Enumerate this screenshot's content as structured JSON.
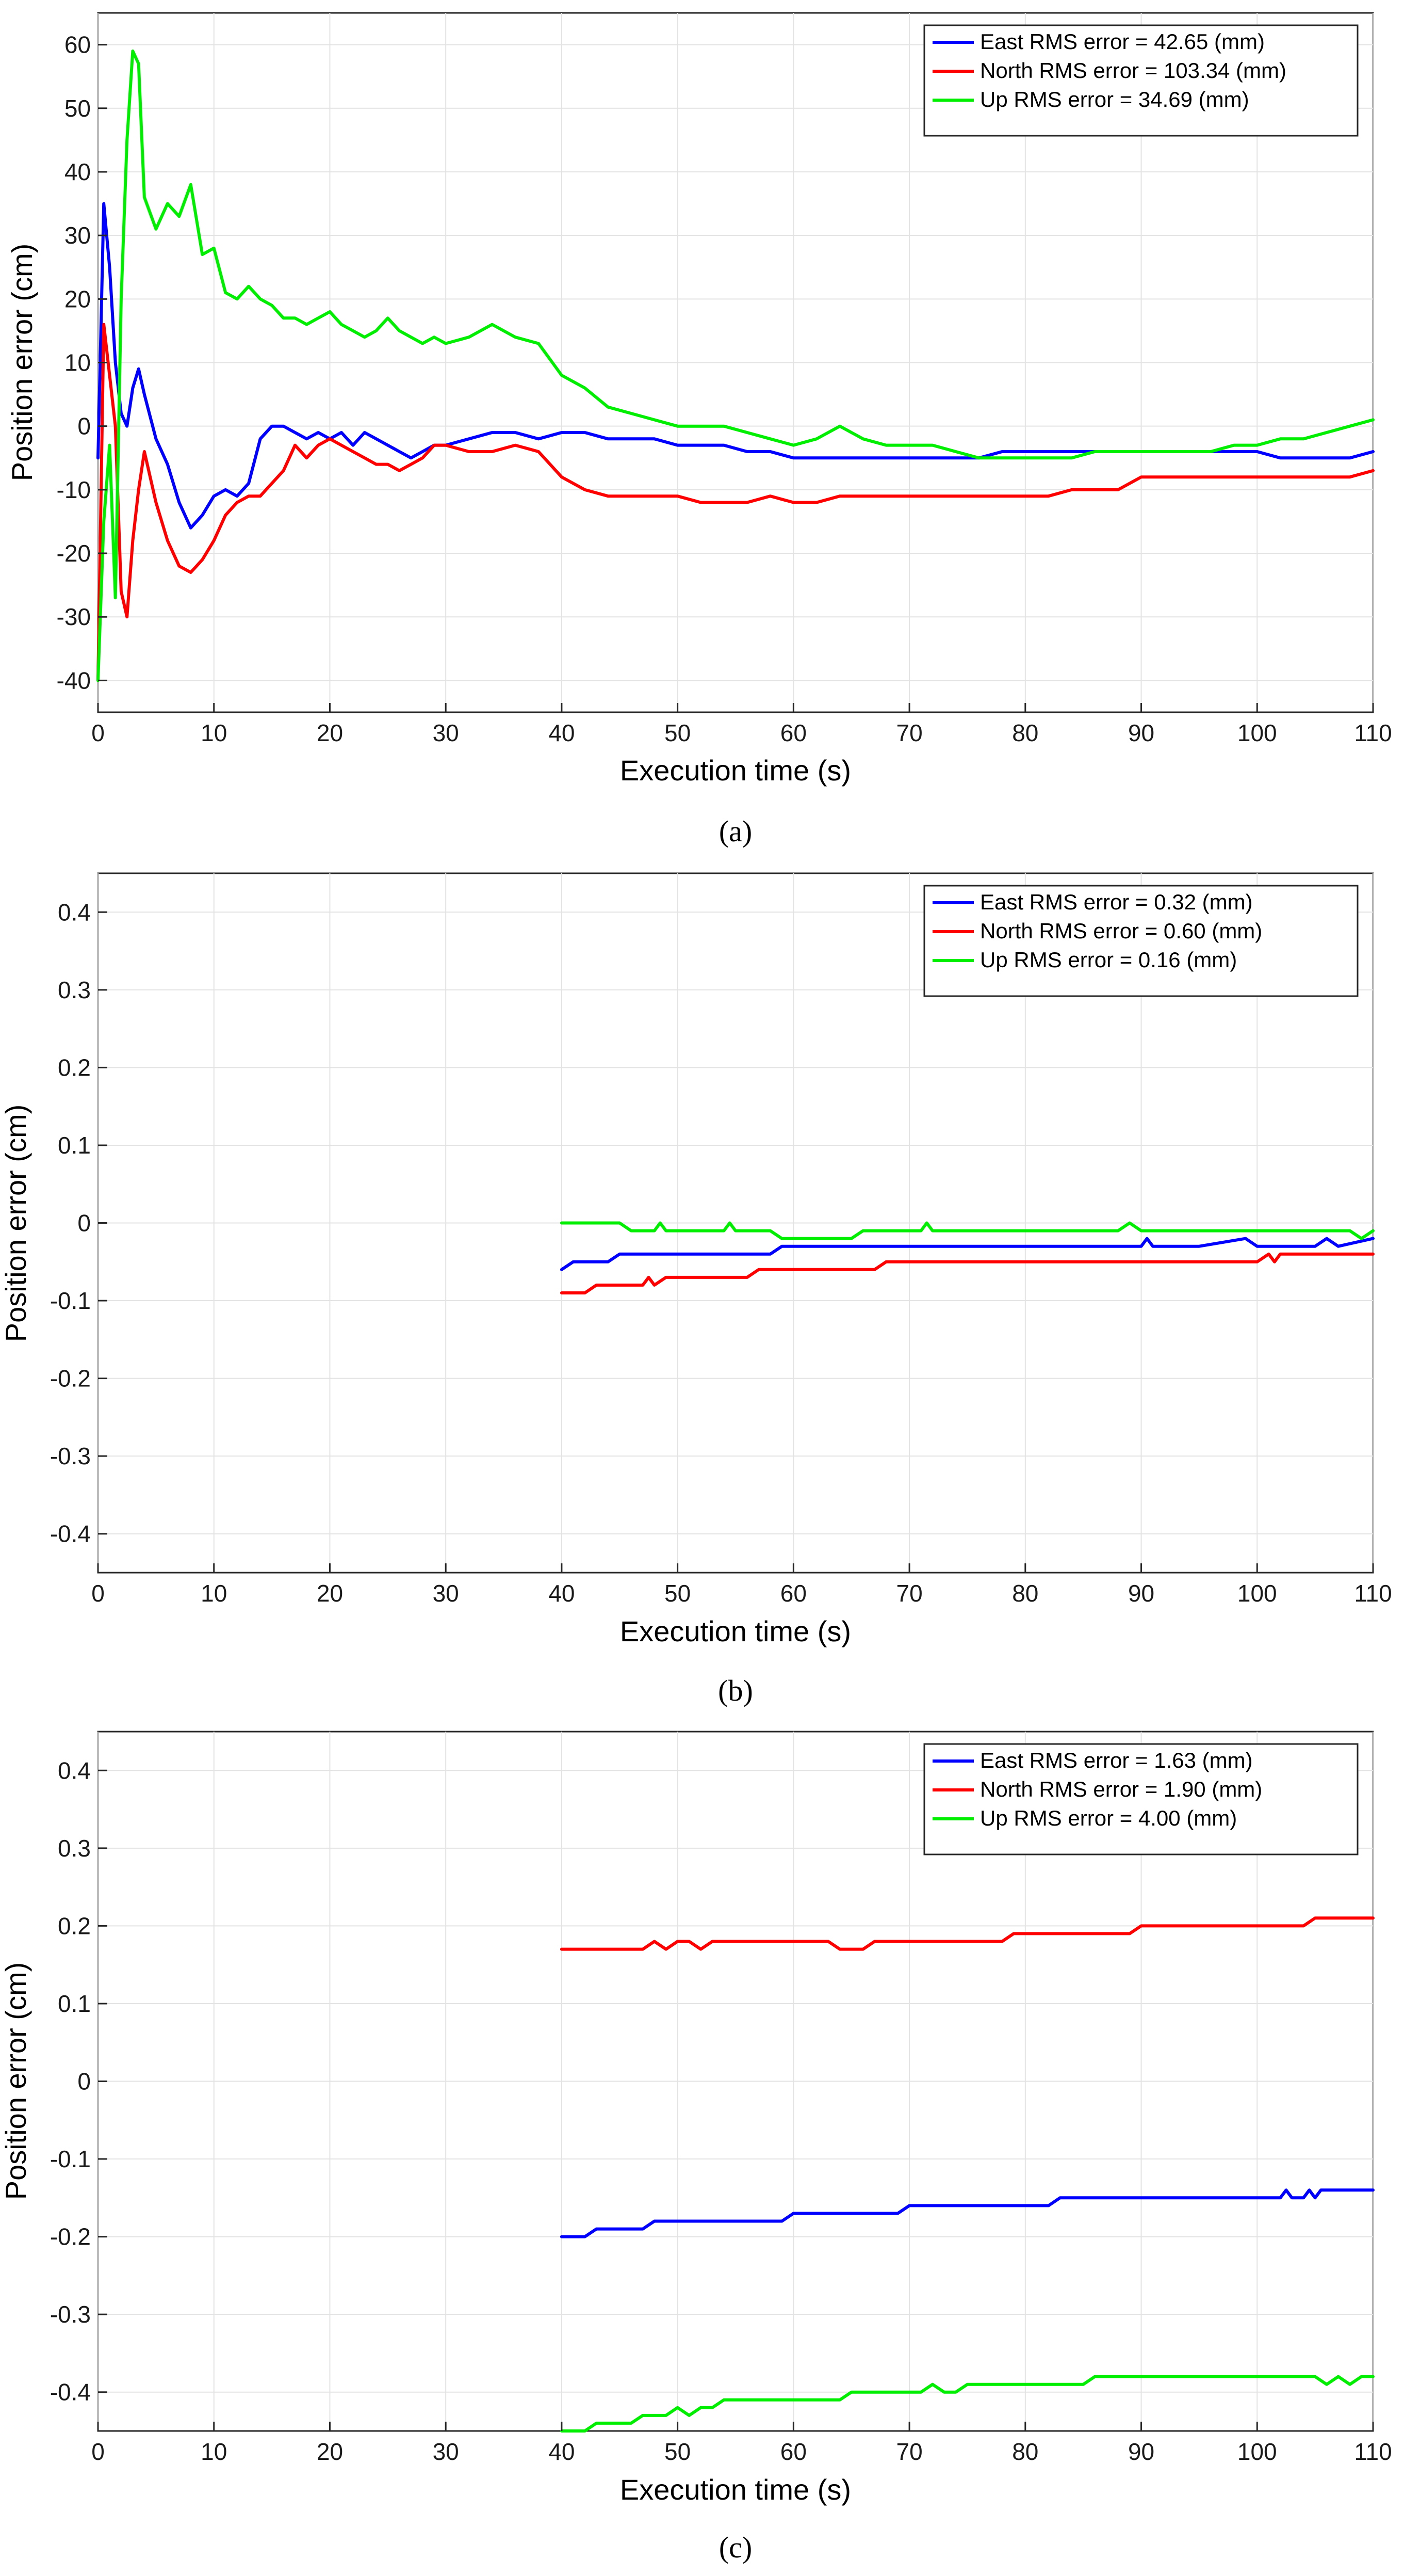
{
  "chart_data": [
    {
      "id": "a",
      "type": "line",
      "caption": "(a)",
      "xlabel": "Execution time (s)",
      "ylabel": "Position error (cm)",
      "xlim": [
        0,
        110
      ],
      "ylim": [
        -45,
        65
      ],
      "xticks": [
        0,
        10,
        20,
        30,
        40,
        50,
        60,
        70,
        80,
        90,
        100,
        110
      ],
      "yticks": [
        -40,
        -30,
        -20,
        -10,
        0,
        10,
        20,
        30,
        40,
        50,
        60
      ],
      "grid": true,
      "legend_position": "top-right",
      "series": [
        {
          "name": "East RMS error = 42.65 (mm)",
          "color": "#0000ff",
          "x": [
            0,
            0.5,
            1,
            1.5,
            2,
            2.5,
            3,
            3.5,
            4,
            5,
            6,
            7,
            8,
            9,
            10,
            11,
            12,
            13,
            14,
            15,
            16,
            17,
            18,
            19,
            20,
            21,
            22,
            23,
            24,
            25,
            26,
            27,
            28,
            29,
            30,
            32,
            34,
            36,
            38,
            40,
            42,
            44,
            46,
            48,
            50,
            52,
            54,
            56,
            58,
            60,
            62,
            64,
            66,
            68,
            70,
            72,
            74,
            76,
            78,
            80,
            82,
            84,
            86,
            88,
            90,
            92,
            94,
            96,
            98,
            100,
            102,
            104,
            106,
            108,
            110
          ],
          "y": [
            -5,
            35,
            25,
            10,
            2,
            0,
            6,
            9,
            5,
            -2,
            -6,
            -12,
            -16,
            -14,
            -11,
            -10,
            -11,
            -9,
            -2,
            0,
            0,
            -1,
            -2,
            -1,
            -2,
            -1,
            -3,
            -1,
            -2,
            -3,
            -4,
            -5,
            -4,
            -3,
            -3,
            -2,
            -1,
            -1,
            -2,
            -1,
            -1,
            -2,
            -2,
            -2,
            -3,
            -3,
            -3,
            -4,
            -4,
            -5,
            -5,
            -5,
            -5,
            -5,
            -5,
            -5,
            -5,
            -5,
            -4,
            -4,
            -4,
            -4,
            -4,
            -4,
            -4,
            -4,
            -4,
            -4,
            -4,
            -4,
            -5,
            -5,
            -5,
            -5,
            -4
          ]
        },
        {
          "name": "North RMS error = 103.34 (mm)",
          "color": "#ff0000",
          "x": [
            0,
            0.5,
            1,
            1.5,
            2,
            2.5,
            3,
            3.5,
            4,
            5,
            6,
            7,
            8,
            9,
            10,
            11,
            12,
            13,
            14,
            15,
            16,
            17,
            18,
            19,
            20,
            21,
            22,
            23,
            24,
            25,
            26,
            27,
            28,
            29,
            30,
            32,
            34,
            36,
            38,
            40,
            42,
            44,
            46,
            48,
            50,
            52,
            54,
            56,
            58,
            60,
            62,
            64,
            66,
            68,
            70,
            72,
            74,
            76,
            78,
            80,
            82,
            84,
            86,
            88,
            90,
            92,
            94,
            96,
            98,
            100,
            102,
            104,
            106,
            108,
            110
          ],
          "y": [
            -40,
            16,
            8,
            0,
            -26,
            -30,
            -18,
            -10,
            -4,
            -12,
            -18,
            -22,
            -23,
            -21,
            -18,
            -14,
            -12,
            -11,
            -11,
            -9,
            -7,
            -3,
            -5,
            -3,
            -2,
            -3,
            -4,
            -5,
            -6,
            -6,
            -7,
            -6,
            -5,
            -3,
            -3,
            -4,
            -4,
            -3,
            -4,
            -8,
            -10,
            -11,
            -11,
            -11,
            -11,
            -12,
            -12,
            -12,
            -11,
            -12,
            -12,
            -11,
            -11,
            -11,
            -11,
            -11,
            -11,
            -11,
            -11,
            -11,
            -11,
            -10,
            -10,
            -10,
            -8,
            -8,
            -8,
            -8,
            -8,
            -8,
            -8,
            -8,
            -8,
            -8,
            -7
          ]
        },
        {
          "name": "Up RMS error = 34.69 (mm)",
          "color": "#00ee00",
          "x": [
            0,
            0.5,
            1,
            1.5,
            2,
            2.5,
            3,
            3.5,
            4,
            5,
            6,
            7,
            8,
            9,
            10,
            11,
            12,
            13,
            14,
            15,
            16,
            17,
            18,
            19,
            20,
            21,
            22,
            23,
            24,
            25,
            26,
            27,
            28,
            29,
            30,
            32,
            34,
            36,
            38,
            40,
            42,
            44,
            46,
            48,
            50,
            52,
            54,
            56,
            58,
            60,
            62,
            64,
            66,
            68,
            70,
            72,
            74,
            76,
            78,
            80,
            82,
            84,
            86,
            88,
            90,
            92,
            94,
            96,
            98,
            100,
            102,
            104,
            106,
            108,
            110
          ],
          "y": [
            -40,
            -15,
            -3,
            -27,
            20,
            45,
            59,
            57,
            36,
            31,
            35,
            33,
            38,
            27,
            28,
            21,
            20,
            22,
            20,
            19,
            17,
            17,
            16,
            17,
            18,
            16,
            15,
            14,
            15,
            17,
            15,
            14,
            13,
            14,
            13,
            14,
            16,
            14,
            13,
            8,
            6,
            3,
            2,
            1,
            0,
            0,
            0,
            -1,
            -2,
            -3,
            -2,
            0,
            -2,
            -3,
            -3,
            -3,
            -4,
            -5,
            -5,
            -5,
            -5,
            -5,
            -4,
            -4,
            -4,
            -4,
            -4,
            -4,
            -3,
            -3,
            -2,
            -2,
            -1,
            0,
            1
          ]
        }
      ]
    },
    {
      "id": "b",
      "type": "line",
      "caption": "(b)",
      "xlabel": "Execution time (s)",
      "ylabel": "Position error (cm)",
      "xlim": [
        0,
        110
      ],
      "ylim": [
        -0.45,
        0.45
      ],
      "xticks": [
        0,
        10,
        20,
        30,
        40,
        50,
        60,
        70,
        80,
        90,
        100,
        110
      ],
      "yticks": [
        -0.4,
        -0.3,
        -0.2,
        -0.1,
        0,
        0.1,
        0.2,
        0.3,
        0.4
      ],
      "ytick_labels": [
        "-0.4",
        "-0.3",
        "-0.2",
        "-0.1",
        "0",
        "0.1",
        "0.2",
        "0.3",
        "0.4"
      ],
      "grid": true,
      "legend_position": "top-right",
      "series": [
        {
          "name": "East RMS error = 0.32 (mm)",
          "color": "#0000ff",
          "x": [
            40,
            41,
            44,
            45,
            50,
            55,
            58,
            59,
            70,
            80,
            90,
            90.5,
            91,
            95,
            99,
            100,
            105,
            106,
            107,
            110
          ],
          "y": [
            -0.06,
            -0.05,
            -0.05,
            -0.04,
            -0.04,
            -0.04,
            -0.04,
            -0.03,
            -0.03,
            -0.03,
            -0.03,
            -0.02,
            -0.03,
            -0.03,
            -0.02,
            -0.03,
            -0.03,
            -0.02,
            -0.03,
            -0.02
          ]
        },
        {
          "name": "North RMS error = 0.60 (mm)",
          "color": "#ff0000",
          "x": [
            40,
            42,
            43,
            47,
            47.5,
            48,
            49,
            56,
            57,
            67,
            68,
            82,
            83,
            100,
            101,
            101.5,
            102,
            110
          ],
          "y": [
            -0.09,
            -0.09,
            -0.08,
            -0.08,
            -0.07,
            -0.08,
            -0.07,
            -0.07,
            -0.06,
            -0.06,
            -0.05,
            -0.05,
            -0.05,
            -0.05,
            -0.04,
            -0.05,
            -0.04,
            -0.04
          ]
        },
        {
          "name": "Up RMS error = 0.16 (mm)",
          "color": "#00ee00",
          "x": [
            40,
            45,
            46,
            48,
            48.5,
            49,
            54,
            54.5,
            55,
            58,
            59,
            65,
            66,
            71,
            71.5,
            72,
            88,
            89,
            90,
            100,
            101,
            108,
            109,
            110
          ],
          "y": [
            0.0,
            0.0,
            -0.01,
            -0.01,
            0.0,
            -0.01,
            -0.01,
            0.0,
            -0.01,
            -0.01,
            -0.02,
            -0.02,
            -0.01,
            -0.01,
            0.0,
            -0.01,
            -0.01,
            0.0,
            -0.01,
            -0.01,
            -0.01,
            -0.01,
            -0.02,
            -0.01
          ]
        }
      ]
    },
    {
      "id": "c",
      "type": "line",
      "caption": "(c)",
      "xlabel": "Execution time (s)",
      "ylabel": "Position error (cm)",
      "xlim": [
        0,
        110
      ],
      "ylim": [
        -0.45,
        0.45
      ],
      "xticks": [
        0,
        10,
        20,
        30,
        40,
        50,
        60,
        70,
        80,
        90,
        100,
        110
      ],
      "yticks": [
        -0.4,
        -0.3,
        -0.2,
        -0.1,
        0,
        0.1,
        0.2,
        0.3,
        0.4
      ],
      "ytick_labels": [
        "-0.4",
        "-0.3",
        "-0.2",
        "-0.1",
        "0",
        "0.1",
        "0.2",
        "0.3",
        "0.4"
      ],
      "grid": true,
      "legend_position": "top-right",
      "series": [
        {
          "name": "East RMS error = 1.63 (mm)",
          "color": "#0000ff",
          "x": [
            40,
            42,
            43,
            47,
            48,
            59,
            60,
            69,
            70,
            82,
            83,
            102,
            102.5,
            103,
            104,
            104.5,
            105,
            105.5,
            106,
            110
          ],
          "y": [
            -0.2,
            -0.2,
            -0.19,
            -0.19,
            -0.18,
            -0.18,
            -0.17,
            -0.17,
            -0.16,
            -0.16,
            -0.15,
            -0.15,
            -0.14,
            -0.15,
            -0.15,
            -0.14,
            -0.15,
            -0.14,
            -0.14,
            -0.14
          ]
        },
        {
          "name": "North RMS error = 1.90 (mm)",
          "color": "#ff0000",
          "x": [
            40,
            47,
            48,
            49,
            50,
            51,
            52,
            53,
            63,
            64,
            66,
            67,
            78,
            79,
            89,
            90,
            104,
            105,
            110
          ],
          "y": [
            0.17,
            0.17,
            0.18,
            0.17,
            0.18,
            0.18,
            0.17,
            0.18,
            0.18,
            0.17,
            0.17,
            0.18,
            0.18,
            0.19,
            0.19,
            0.2,
            0.2,
            0.21,
            0.21
          ]
        },
        {
          "name": "Up RMS error = 4.00 (mm)",
          "color": "#00ee00",
          "x": [
            40,
            42,
            43,
            46,
            47,
            49,
            50,
            51,
            52,
            53,
            54,
            64,
            65,
            71,
            72,
            73,
            74,
            75,
            76,
            85,
            86,
            105,
            106,
            107,
            108,
            109,
            110
          ],
          "y": [
            -0.45,
            -0.45,
            -0.44,
            -0.44,
            -0.43,
            -0.43,
            -0.42,
            -0.43,
            -0.42,
            -0.42,
            -0.41,
            -0.41,
            -0.4,
            -0.4,
            -0.39,
            -0.4,
            -0.4,
            -0.39,
            -0.39,
            -0.39,
            -0.38,
            -0.38,
            -0.39,
            -0.38,
            -0.39,
            -0.38,
            -0.38
          ]
        }
      ]
    }
  ]
}
